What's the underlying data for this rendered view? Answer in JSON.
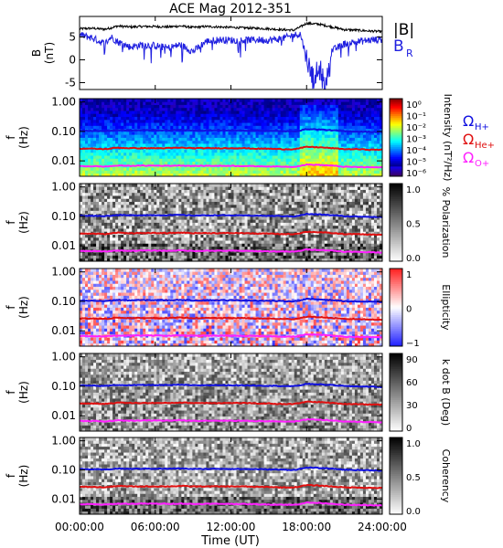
{
  "title": "ACE Mag 2012-351",
  "xlabel": "Time (UT)",
  "xticks": [
    "00:00:00",
    "06:00:00",
    "12:00:00",
    "18:00:00",
    "24:00:00"
  ],
  "freq_ticks": [
    "1.00",
    "0.10",
    "0.01"
  ],
  "colors": {
    "B": "#000000",
    "BR": "#2020e0",
    "H": "#1010e0",
    "He": "#e01010",
    "O": "#ff20ff"
  },
  "legend_top": {
    "B": "|B|",
    "BR": "B",
    "BR_sub": "R"
  },
  "legend_ions": [
    {
      "sym": "Ω",
      "sub": "H+",
      "color": "#1010e0"
    },
    {
      "sym": "Ω",
      "sub": "He+",
      "color": "#e01010"
    },
    {
      "sym": "Ω",
      "sub": "O+",
      "color": "#ff20ff"
    }
  ],
  "panels": [
    {
      "id": "intensity",
      "colorbar_label": "Intensity (nT²/Hz)",
      "colorbar_ticks": [
        "10⁰",
        "10⁻¹",
        "10⁻²",
        "10⁻³",
        "10⁻⁴",
        "10⁻⁵",
        "10⁻⁶"
      ]
    },
    {
      "id": "polarization",
      "colorbar_label": "% Polarization",
      "colorbar_ticks": [
        "1.0",
        "0.5",
        "0.0"
      ]
    },
    {
      "id": "ellipticity",
      "colorbar_label": "Ellipticity",
      "colorbar_ticks": [
        "1",
        "0",
        "−1"
      ]
    },
    {
      "id": "kdotb",
      "colorbar_label": "k dot B (Deg)",
      "colorbar_ticks": [
        "90",
        "60",
        "30",
        "0"
      ]
    },
    {
      "id": "coherency",
      "colorbar_label": "Coherency",
      "colorbar_ticks": [
        "1.0",
        "0.5",
        "0.0"
      ]
    }
  ],
  "chart_data": [
    {
      "type": "line",
      "title": "ACE Mag 2012-351",
      "ylabel": "B (nT)",
      "ylim": [
        -6.5,
        9.5
      ],
      "yticks": [
        -5,
        0,
        5
      ],
      "xlim": [
        0,
        24
      ],
      "series": [
        {
          "name": "|B|",
          "x": [
            0,
            1,
            2,
            2.5,
            3,
            4,
            5,
            6,
            7,
            8,
            9,
            10,
            11,
            12,
            13,
            14,
            15,
            16,
            17,
            17.5,
            18,
            19,
            20,
            21,
            22,
            23,
            24
          ],
          "values": [
            6.8,
            6.9,
            6.7,
            7.0,
            7.4,
            7.2,
            7.3,
            7.3,
            7.2,
            7.4,
            7.1,
            7.3,
            7.2,
            7.1,
            7.0,
            6.9,
            6.8,
            6.6,
            6.5,
            7.2,
            8.0,
            7.8,
            7.2,
            6.6,
            6.5,
            6.3,
            6.2
          ]
        },
        {
          "name": "B",
          "x": [
            0,
            1,
            2,
            2.5,
            3,
            4,
            5,
            6,
            7,
            8,
            9,
            10,
            11,
            12,
            13,
            14,
            15,
            16,
            17,
            17.5,
            18,
            18.5,
            19,
            19.5,
            20,
            21,
            22,
            23,
            24
          ],
          "values": [
            5.5,
            4.8,
            3.5,
            5.0,
            4.0,
            2.8,
            3.3,
            3.1,
            2.6,
            3.3,
            1.8,
            4.0,
            4.4,
            4.3,
            4.3,
            4.4,
            4.3,
            4.6,
            5.4,
            5.7,
            0.5,
            -4.0,
            -2.5,
            -5.5,
            2.0,
            3.5,
            4.0,
            4.3,
            4.5
          ]
        }
      ]
    },
    {
      "type": "heatmap",
      "ylabel": "f (Hz)",
      "y_scale": "log",
      "ylim": [
        0.003,
        1.3
      ],
      "colorbar_label": "Intensity (nT²/Hz)",
      "zlim": [
        1e-06,
        1
      ],
      "z_scale": "log"
    },
    {
      "type": "heatmap",
      "ylabel": "f (Hz)",
      "y_scale": "log",
      "ylim": [
        0.003,
        1.3
      ],
      "colorbar_label": "% Polarization",
      "zlim": [
        0,
        1
      ]
    },
    {
      "type": "heatmap",
      "ylabel": "f (Hz)",
      "y_scale": "log",
      "ylim": [
        0.003,
        1.3
      ],
      "colorbar_label": "Ellipticity",
      "zlim": [
        -1,
        1
      ]
    },
    {
      "type": "heatmap",
      "ylabel": "f (Hz)",
      "y_scale": "log",
      "ylim": [
        0.003,
        1.3
      ],
      "colorbar_label": "k dot B (Deg)",
      "zlim": [
        0,
        90
      ]
    },
    {
      "type": "heatmap",
      "ylabel": "f (Hz)",
      "y_scale": "log",
      "ylim": [
        0.003,
        1.3
      ],
      "colorbar_label": "Coherency",
      "zlim": [
        0,
        1
      ]
    }
  ],
  "gyrofrequency": {
    "x": [
      0,
      1,
      2,
      3,
      4,
      5,
      6,
      7,
      8,
      9,
      10,
      11,
      12,
      13,
      14,
      15,
      16,
      17,
      17.5,
      18,
      19,
      20,
      21,
      22,
      23,
      24
    ],
    "H+": [
      0.105,
      0.105,
      0.102,
      0.111,
      0.108,
      0.11,
      0.11,
      0.109,
      0.112,
      0.107,
      0.108,
      0.109,
      0.108,
      0.107,
      0.106,
      0.104,
      0.102,
      0.1,
      0.108,
      0.12,
      0.116,
      0.11,
      0.101,
      0.099,
      0.097,
      0.095
    ],
    "He+": [
      0.026,
      0.026,
      0.025,
      0.028,
      0.027,
      0.027,
      0.027,
      0.027,
      0.028,
      0.027,
      0.027,
      0.027,
      0.027,
      0.027,
      0.026,
      0.026,
      0.025,
      0.025,
      0.027,
      0.03,
      0.029,
      0.027,
      0.025,
      0.025,
      0.024,
      0.024
    ],
    "O+": [
      0.0066,
      0.0066,
      0.0064,
      0.0069,
      0.0068,
      0.0069,
      0.0069,
      0.0068,
      0.007,
      0.0067,
      0.0068,
      0.0068,
      0.0068,
      0.0067,
      0.0066,
      0.0065,
      0.0064,
      0.0063,
      0.0068,
      0.0075,
      0.0073,
      0.0069,
      0.0063,
      0.0062,
      0.0061,
      0.006
    ]
  }
}
